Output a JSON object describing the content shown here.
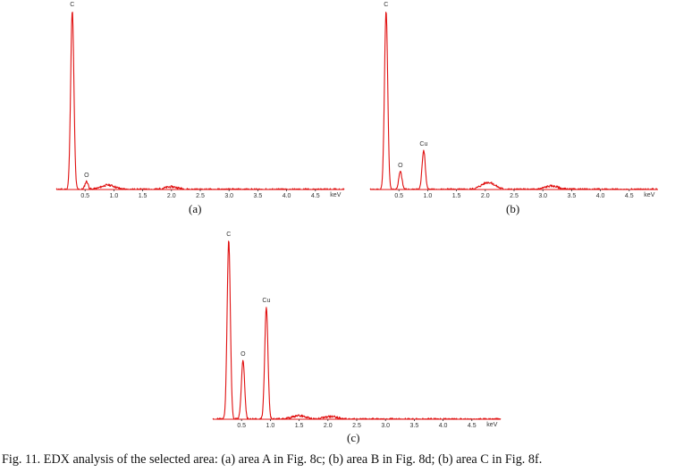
{
  "figure": {
    "caption": "Fig. 11. EDX analysis of the selected area: (a) area A in Fig. 8c; (b) area B in Fig. 8d; (b) area C in Fig. 8f."
  },
  "colors": {
    "spectrum": "#e01010",
    "text": "#333333"
  },
  "chart_data": [
    {
      "type": "line",
      "panel_label": "(a)",
      "xlabel": "keV",
      "xlim": [
        0,
        5.0
      ],
      "x_ticks": [
        "0.5",
        "1.0",
        "1.5",
        "2.0",
        "2.5",
        "3.0",
        "3.5",
        "4.0",
        "4.5"
      ],
      "grid": false,
      "peaks": [
        {
          "element": "C",
          "energy": 0.277,
          "intensity": 1.0
        },
        {
          "element": "O",
          "energy": 0.525,
          "intensity": 0.045
        }
      ],
      "background": [
        [
          0.9,
          0.025
        ],
        [
          2.0,
          0.015
        ]
      ]
    },
    {
      "type": "line",
      "panel_label": "(b)",
      "xlabel": "keV",
      "xlim": [
        0,
        5.0
      ],
      "x_ticks": [
        "0.5",
        "1.0",
        "1.5",
        "2.0",
        "2.5",
        "3.0",
        "3.5",
        "4.0",
        "4.5"
      ],
      "grid": false,
      "peaks": [
        {
          "element": "C",
          "energy": 0.277,
          "intensity": 1.0
        },
        {
          "element": "O",
          "energy": 0.525,
          "intensity": 0.1
        },
        {
          "element": "Cu",
          "energy": 0.93,
          "intensity": 0.22
        }
      ],
      "background": [
        [
          2.05,
          0.04
        ],
        [
          3.15,
          0.02
        ]
      ]
    },
    {
      "type": "line",
      "panel_label": "(c)",
      "xlabel": "keV",
      "xlim": [
        0,
        5.0
      ],
      "x_ticks": [
        "0.5",
        "1.0",
        "1.5",
        "2.0",
        "2.5",
        "3.0",
        "3.5",
        "4.0",
        "4.5"
      ],
      "grid": false,
      "peaks": [
        {
          "element": "C",
          "energy": 0.277,
          "intensity": 1.0
        },
        {
          "element": "O",
          "energy": 0.525,
          "intensity": 0.33
        },
        {
          "element": "Cu",
          "energy": 0.93,
          "intensity": 0.63
        }
      ],
      "background": [
        [
          1.5,
          0.02
        ],
        [
          2.05,
          0.015
        ]
      ]
    }
  ]
}
